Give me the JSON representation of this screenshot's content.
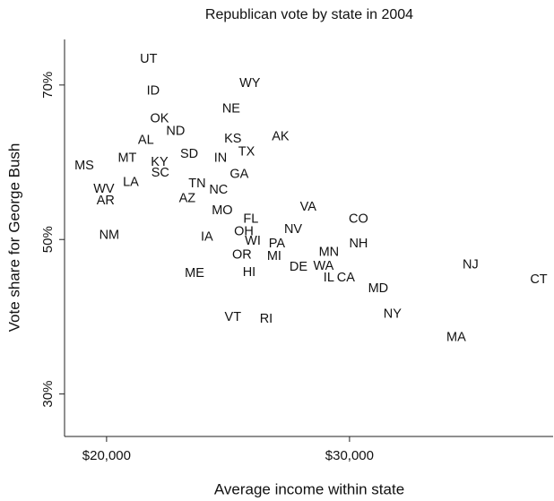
{
  "chart_data": {
    "type": "scatter",
    "title": "Republican vote by state in 2004",
    "x_label": "Average income within state",
    "y_label": "Vote share for George Bush",
    "color": "#111111",
    "xlim": [
      18270,
      38380
    ],
    "ylim": [
      24.5,
      75.9
    ],
    "xticks": [
      {
        "value": 20000,
        "label": "$20,000"
      },
      {
        "value": 30000,
        "label": "$30,000"
      }
    ],
    "yticks": [
      {
        "value": 30,
        "label": "30%"
      },
      {
        "value": 50,
        "label": "50%"
      },
      {
        "value": 70,
        "label": "70%"
      }
    ],
    "point_labels": [
      "UT",
      "ID",
      "WY",
      "NE",
      "OK",
      "ND",
      "AL",
      "KS",
      "AK",
      "TX",
      "MS",
      "MT",
      "KY",
      "SD",
      "IN",
      "SC",
      "GA",
      "LA",
      "WV",
      "AR",
      "TN",
      "NC",
      "AZ",
      "VA",
      "MO",
      "FL",
      "CO",
      "NM",
      "IA",
      "OH",
      "NV",
      "WI",
      "PA",
      "NH",
      "OR",
      "MI",
      "MN",
      "DE",
      "WA",
      "NJ",
      "ME",
      "HI",
      "IL",
      "CA",
      "CT",
      "MD",
      "NY",
      "VT",
      "RI",
      "MA"
    ],
    "x": [
      21730,
      21920,
      25900,
      25130,
      22180,
      22840,
      21620,
      25200,
      27160,
      25760,
      19080,
      20850,
      22180,
      23400,
      24690,
      22210,
      25460,
      21000,
      19890,
      19960,
      23730,
      24610,
      23320,
      28300,
      24760,
      25940,
      30370,
      20110,
      24130,
      25650,
      27680,
      26020,
      27010,
      30370,
      25570,
      26900,
      29150,
      27900,
      28930,
      34980,
      23620,
      25870,
      29150,
      29850,
      37790,
      31180,
      31770,
      25200,
      26570,
      34390
    ],
    "values": [
      73.3,
      69.2,
      70.2,
      66.9,
      65.6,
      64.0,
      62.8,
      63.0,
      63.3,
      61.3,
      59.5,
      60.5,
      60.0,
      61.0,
      60.5,
      58.6,
      58.4,
      57.4,
      56.5,
      55.0,
      57.2,
      56.4,
      55.3,
      54.2,
      53.7,
      52.6,
      52.6,
      50.5,
      50.3,
      51.0,
      51.3,
      49.8,
      49.4,
      49.4,
      48.0,
      47.8,
      48.3,
      46.4,
      46.5,
      46.7,
      45.6,
      45.7,
      45.0,
      45.0,
      44.8,
      43.6,
      40.3,
      39.9,
      39.7,
      37.3
    ]
  }
}
